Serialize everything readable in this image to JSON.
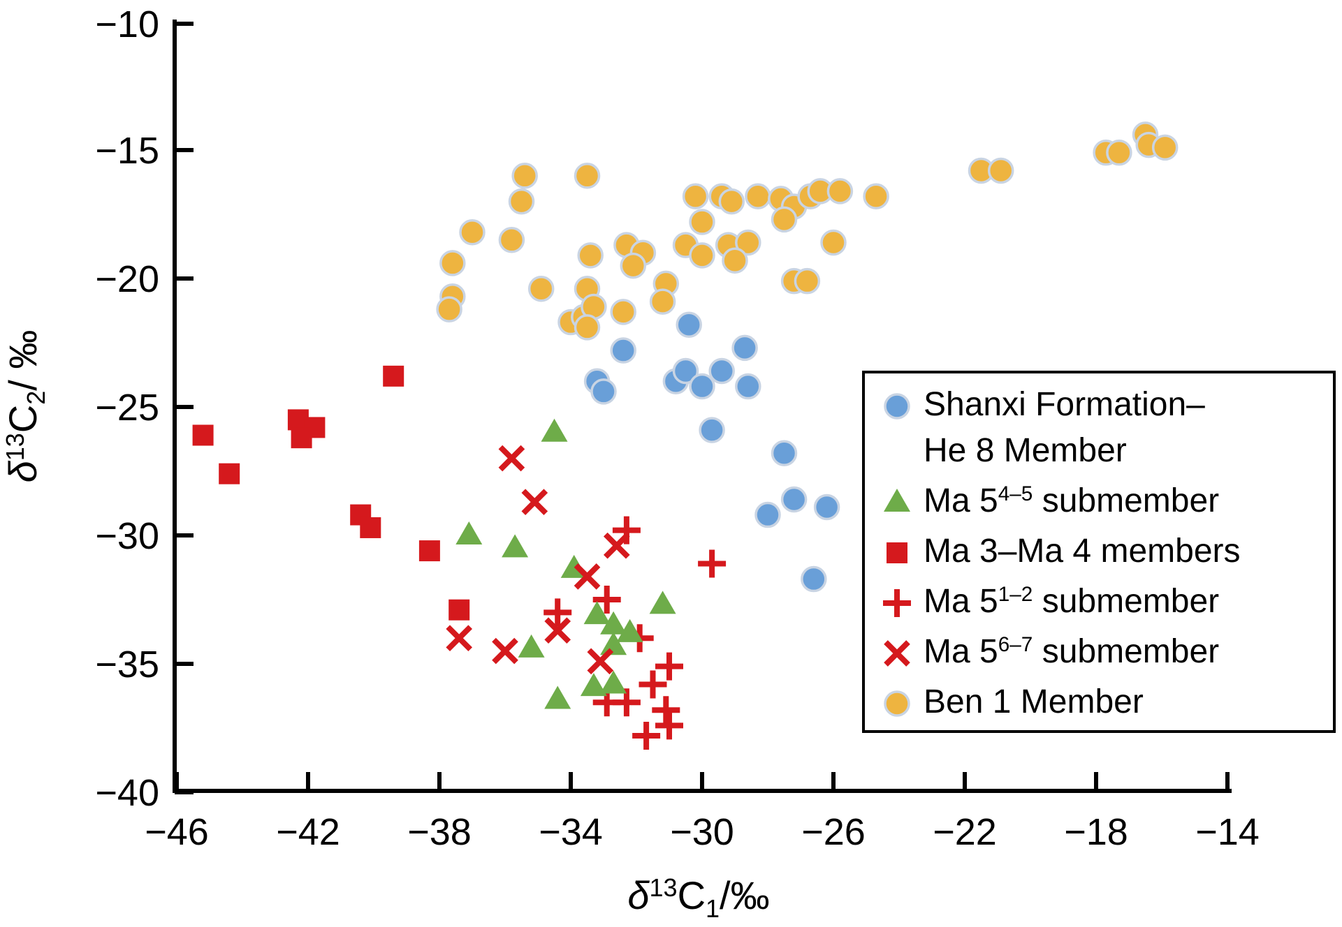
{
  "chart_data": {
    "type": "scatter",
    "title": "",
    "xlabel_parts": [
      {
        "t": "δ",
        "italic": true
      },
      {
        "t": "13",
        "sup": true
      },
      {
        "t": "C"
      },
      {
        "t": "1",
        "sub": true
      },
      {
        "t": "/‰"
      }
    ],
    "ylabel_parts": [
      {
        "t": "δ",
        "italic": true
      },
      {
        "t": "13",
        "sup": true
      },
      {
        "t": "C"
      },
      {
        "t": "2",
        "sub": true
      },
      {
        "t": "/ ‰"
      }
    ],
    "xlim": [
      -46,
      -14
    ],
    "ylim": [
      -40,
      -10
    ],
    "grid": false,
    "legend_position": "right",
    "x_ticks": [
      {
        "v": -46,
        "label": "−46"
      },
      {
        "v": -42,
        "label": "−42"
      },
      {
        "v": -38,
        "label": "−38"
      },
      {
        "v": -34,
        "label": "−34"
      },
      {
        "v": -30,
        "label": "−30"
      },
      {
        "v": -26,
        "label": "−26"
      },
      {
        "v": -22,
        "label": "−22"
      },
      {
        "v": -18,
        "label": "−18"
      },
      {
        "v": -14,
        "label": "−14"
      }
    ],
    "y_ticks": [
      {
        "v": -10,
        "label": "−10"
      },
      {
        "v": -15,
        "label": "−15"
      },
      {
        "v": -20,
        "label": "−20"
      },
      {
        "v": -25,
        "label": "−25"
      },
      {
        "v": -30,
        "label": "−30"
      },
      {
        "v": -35,
        "label": "−35"
      },
      {
        "v": -40,
        "label": "−40"
      }
    ],
    "colors": {
      "blue": "#699FD8",
      "green": "#6EAC49",
      "red": "#D5191D",
      "orange": "#EEB440",
      "circle_outline": "#C9D4E3",
      "axis": "#000000"
    },
    "series": [
      {
        "key": "ma34",
        "name": "Ma 3–Ma 4 members",
        "marker": "square",
        "color": "#D5191D",
        "points": [
          [
            -45.2,
            -26.1
          ],
          [
            -44.4,
            -27.6
          ],
          [
            -42.3,
            -25.5
          ],
          [
            -41.8,
            -25.8
          ],
          [
            -42.2,
            -26.2
          ],
          [
            -40.4,
            -29.2
          ],
          [
            -40.1,
            -29.7
          ],
          [
            -39.4,
            -23.8
          ],
          [
            -38.3,
            -30.6
          ],
          [
            -37.4,
            -32.9
          ]
        ]
      },
      {
        "key": "ma12",
        "name": "Ma 5 1–2 submember",
        "marker": "plus",
        "color": "#D5191D",
        "points": [
          [
            -32.3,
            -29.8
          ],
          [
            -29.7,
            -31.1
          ],
          [
            -32.9,
            -32.5
          ],
          [
            -34.4,
            -33.0
          ],
          [
            -31.9,
            -34.0
          ],
          [
            -31.0,
            -35.1
          ],
          [
            -31.5,
            -35.8
          ],
          [
            -32.9,
            -36.5
          ],
          [
            -32.3,
            -36.5
          ],
          [
            -31.1,
            -36.8
          ],
          [
            -31.0,
            -37.4
          ],
          [
            -31.7,
            -37.8
          ]
        ]
      },
      {
        "key": "ma45",
        "name": "Ma 5 4–5 submember",
        "marker": "triangle",
        "color": "#6EAC49",
        "points": [
          [
            -37.1,
            -30.0
          ],
          [
            -35.7,
            -30.5
          ],
          [
            -34.5,
            -26.0
          ],
          [
            -33.9,
            -31.3
          ],
          [
            -33.2,
            -33.1
          ],
          [
            -32.7,
            -33.5
          ],
          [
            -32.2,
            -33.8
          ],
          [
            -32.7,
            -34.3
          ],
          [
            -31.2,
            -32.7
          ],
          [
            -35.2,
            -34.4
          ],
          [
            -33.3,
            -35.9
          ],
          [
            -32.7,
            -35.8
          ],
          [
            -34.4,
            -36.4
          ]
        ]
      },
      {
        "key": "ma67",
        "name": "Ma 5 6–7 submember",
        "marker": "x",
        "color": "#D5191D",
        "points": [
          [
            -35.8,
            -27.0
          ],
          [
            -35.1,
            -28.7
          ],
          [
            -32.6,
            -30.4
          ],
          [
            -33.5,
            -31.6
          ],
          [
            -34.4,
            -33.7
          ],
          [
            -37.4,
            -34.0
          ],
          [
            -36.0,
            -34.5
          ],
          [
            -33.1,
            -34.9
          ]
        ]
      },
      {
        "key": "ben1",
        "name": "Ben 1 Member",
        "marker": "circle",
        "color": "#EEB440",
        "points": [
          [
            -35.4,
            -16.0
          ],
          [
            -33.5,
            -16.0
          ],
          [
            -35.5,
            -17.0
          ],
          [
            -37.0,
            -18.2
          ],
          [
            -35.8,
            -18.5
          ],
          [
            -37.6,
            -19.4
          ],
          [
            -37.6,
            -20.7
          ],
          [
            -37.7,
            -21.2
          ],
          [
            -34.9,
            -20.4
          ],
          [
            -33.5,
            -20.4
          ],
          [
            -33.4,
            -19.1
          ],
          [
            -32.3,
            -18.7
          ],
          [
            -31.8,
            -19.0
          ],
          [
            -32.1,
            -19.5
          ],
          [
            -30.5,
            -18.7
          ],
          [
            -30.0,
            -19.1
          ],
          [
            -30.2,
            -16.8
          ],
          [
            -29.4,
            -16.8
          ],
          [
            -29.1,
            -17.0
          ],
          [
            -30.0,
            -17.8
          ],
          [
            -31.1,
            -20.2
          ],
          [
            -31.2,
            -20.9
          ],
          [
            -34.0,
            -21.7
          ],
          [
            -33.6,
            -21.5
          ],
          [
            -33.3,
            -21.1
          ],
          [
            -33.5,
            -21.9
          ],
          [
            -32.4,
            -21.3
          ],
          [
            -29.2,
            -18.7
          ],
          [
            -28.6,
            -18.6
          ],
          [
            -29.0,
            -19.3
          ],
          [
            -28.3,
            -16.8
          ],
          [
            -27.6,
            -16.9
          ],
          [
            -27.2,
            -17.2
          ],
          [
            -26.7,
            -16.8
          ],
          [
            -26.4,
            -16.6
          ],
          [
            -25.8,
            -16.6
          ],
          [
            -27.5,
            -17.7
          ],
          [
            -24.7,
            -16.8
          ],
          [
            -26.0,
            -18.6
          ],
          [
            -27.2,
            -20.1
          ],
          [
            -26.8,
            -20.1
          ],
          [
            -21.5,
            -15.8
          ],
          [
            -20.9,
            -15.8
          ],
          [
            -17.7,
            -15.1
          ],
          [
            -17.3,
            -15.1
          ],
          [
            -16.5,
            -14.4
          ],
          [
            -16.4,
            -14.8
          ],
          [
            -15.9,
            -14.9
          ]
        ]
      },
      {
        "key": "shanxi",
        "name": "Shanxi Formation–He 8 Member",
        "marker": "circle",
        "color": "#699FD8",
        "points": [
          [
            -30.4,
            -21.8
          ],
          [
            -28.7,
            -22.7
          ],
          [
            -32.4,
            -22.8
          ],
          [
            -33.2,
            -24.0
          ],
          [
            -33.0,
            -24.4
          ],
          [
            -30.8,
            -24.0
          ],
          [
            -30.5,
            -23.6
          ],
          [
            -30.0,
            -24.2
          ],
          [
            -29.4,
            -23.6
          ],
          [
            -28.6,
            -24.2
          ],
          [
            -29.7,
            -25.9
          ],
          [
            -27.5,
            -26.8
          ],
          [
            -27.2,
            -28.6
          ],
          [
            -28.0,
            -29.2
          ],
          [
            -26.2,
            -28.9
          ],
          [
            -26.6,
            -31.7
          ]
        ]
      }
    ],
    "legend": {
      "entries": [
        {
          "series_key": "shanxi",
          "marker": "circle",
          "color": "#699FD8",
          "lines": [
            [
              {
                "t": "Shanxi Formation–"
              }
            ],
            [
              {
                "t": "He 8 Member"
              }
            ]
          ]
        },
        {
          "series_key": "ma45",
          "marker": "triangle",
          "color": "#6EAC49",
          "lines": [
            [
              {
                "t": "Ma 5"
              },
              {
                "t": "4–5",
                "sup": true
              },
              {
                "t": " submember"
              }
            ]
          ]
        },
        {
          "series_key": "ma34",
          "marker": "square",
          "color": "#D5191D",
          "lines": [
            [
              {
                "t": "Ma 3–Ma 4 members"
              }
            ]
          ]
        },
        {
          "series_key": "ma12",
          "marker": "plus",
          "color": "#D5191D",
          "lines": [
            [
              {
                "t": "Ma 5"
              },
              {
                "t": "1–2",
                "sup": true
              },
              {
                "t": " submember"
              }
            ]
          ]
        },
        {
          "series_key": "ma67",
          "marker": "x",
          "color": "#D5191D",
          "lines": [
            [
              {
                "t": "Ma 5"
              },
              {
                "t": "6–7",
                "sup": true
              },
              {
                "t": " submember"
              }
            ]
          ]
        },
        {
          "series_key": "ben1",
          "marker": "circle",
          "color": "#EEB440",
          "lines": [
            [
              {
                "t": "Ben 1 Member"
              }
            ]
          ]
        }
      ]
    }
  }
}
